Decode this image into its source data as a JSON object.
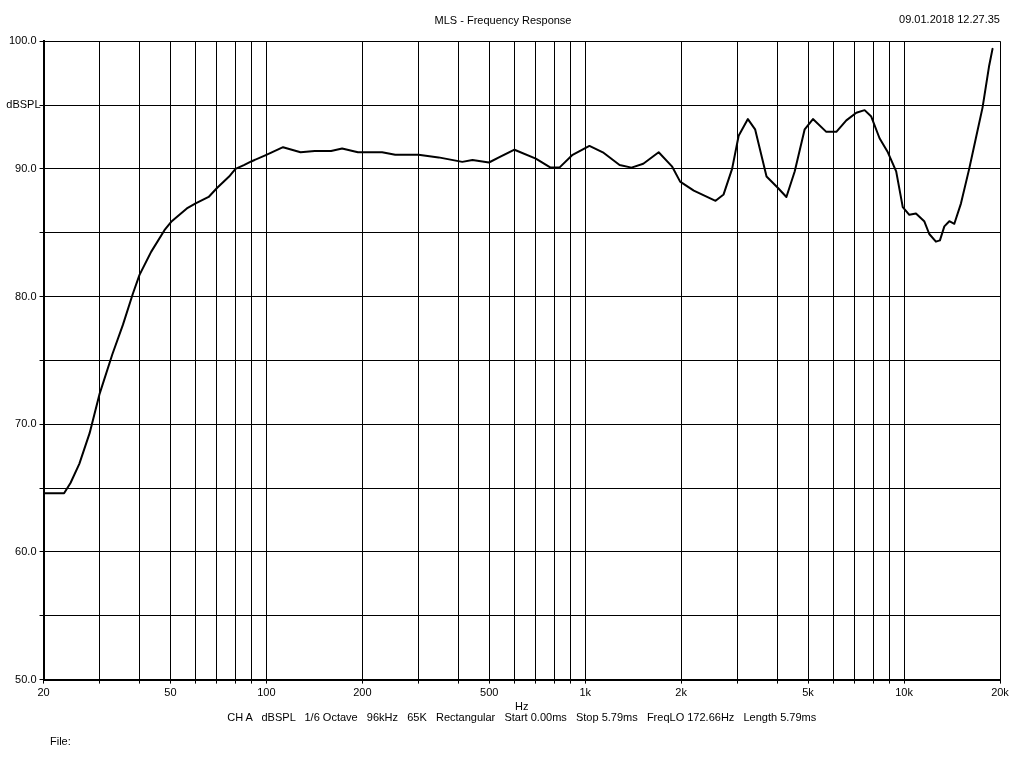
{
  "chart_data": {
    "type": "line",
    "title": "MLS - Frequency Response",
    "xlabel": "Hz",
    "ylabel": "dBSPL",
    "annotations": [
      "09.01.2018 12.27.35",
      "CH A   dBSPL   1/6 Octave   96kHz   65K   Rectangular   Start 0.00ms   Stop 5.79ms   FreqLO 172.66Hz   Length 5.79ms",
      "File:"
    ],
    "log": "x",
    "grid": true,
    "legend": false,
    "marker": "none",
    "line_style": "solid",
    "xlim": [
      20,
      20000
    ],
    "ylim": [
      50,
      100
    ],
    "xticks": [
      20,
      {
        "value": 30,
        "label": null
      },
      {
        "value": 40,
        "label": null
      },
      50,
      {
        "value": 60,
        "label": null
      },
      {
        "value": 70,
        "label": null
      },
      {
        "value": 80,
        "label": null
      },
      {
        "value": 90,
        "label": null
      },
      100,
      200,
      {
        "value": 300,
        "label": null
      },
      {
        "value": 400,
        "label": null
      },
      500,
      {
        "value": 600,
        "label": null
      },
      {
        "value": 700,
        "label": null
      },
      {
        "value": 800,
        "label": null
      },
      {
        "value": 900,
        "label": null
      },
      {
        "value": 1000,
        "label": "1k"
      },
      {
        "value": 2000,
        "label": "2k"
      },
      {
        "value": 3000,
        "label": null
      },
      {
        "value": 4000,
        "label": null
      },
      {
        "value": 5000,
        "label": "5k"
      },
      {
        "value": 6000,
        "label": null
      },
      {
        "value": 7000,
        "label": null
      },
      {
        "value": 8000,
        "label": null
      },
      {
        "value": 9000,
        "label": null
      },
      {
        "value": 10000,
        "label": "10k"
      },
      {
        "value": 20000,
        "label": "20k"
      }
    ],
    "yticks": [
      {
        "value": 50,
        "label": "50.0"
      },
      {
        "value": 55,
        "label": null
      },
      {
        "value": 60,
        "label": "60.0"
      },
      {
        "value": 65,
        "label": null
      },
      {
        "value": 70,
        "label": "70.0"
      },
      {
        "value": 75,
        "label": null
      },
      {
        "value": 80,
        "label": "80.0"
      },
      {
        "value": 85,
        "label": null
      },
      {
        "value": 90,
        "label": "90.0"
      },
      {
        "value": 95,
        "label": null
      },
      {
        "value": 100,
        "label": "100.0"
      }
    ],
    "series": [
      {
        "color": "#000000",
        "x": [
          20,
          23.2,
          24.3,
          25.9,
          27.9,
          30,
          32.9,
          35.5,
          38.1,
          40,
          43.5,
          47.9,
          50.5,
          56.3,
          60,
          65.9,
          70,
          76.4,
          80,
          85,
          90,
          100,
          112.8,
          128,
          141.8,
          159.6,
          172.8,
          193.7,
          230.7,
          253.6,
          300,
          346.9,
          411.6,
          443,
          499,
          536.4,
          600,
          700,
          779,
          830,
          913,
          1031,
          1136,
          1282,
          1397,
          1521,
          1700,
          1871,
          1985,
          2191,
          2564,
          2717,
          2889,
          3029,
          3238,
          3411,
          3705,
          4025,
          4276,
          4540,
          4880,
          5180,
          5705,
          6133,
          6592,
          7085,
          7523,
          7892,
          8380,
          8898,
          9449,
          9909,
          10390,
          10900,
          11570,
          12000,
          12590,
          12960,
          13380,
          13870,
          14380,
          15090,
          16010,
          16800,
          17630,
          18500,
          18950
        ],
        "values": [
          64.6,
          64.6,
          65.4,
          66.9,
          69.3,
          72.4,
          75.5,
          77.8,
          80.2,
          81.7,
          83.5,
          85.2,
          85.9,
          86.9,
          87.3,
          87.8,
          88.5,
          89.4,
          90.0,
          90.3,
          90.6,
          91.1,
          91.7,
          91.3,
          91.4,
          91.4,
          91.6,
          91.3,
          91.3,
          91.1,
          91.1,
          90.9,
          90.55,
          90.7,
          90.5,
          90.9,
          91.5,
          90.8,
          90.1,
          90.1,
          91.1,
          91.8,
          91.3,
          90.3,
          90.1,
          90.4,
          91.3,
          90.2,
          89.0,
          88.3,
          87.5,
          88.0,
          90.0,
          92.6,
          93.9,
          93.1,
          89.4,
          88.5,
          87.8,
          89.8,
          93.1,
          93.9,
          92.9,
          92.9,
          93.8,
          94.4,
          94.6,
          94.1,
          92.4,
          91.3,
          89.8,
          87.0,
          86.4,
          86.5,
          85.9,
          84.9,
          84.3,
          84.4,
          85.5,
          85.9,
          85.7,
          87.3,
          90.0,
          92.4,
          94.8,
          98.1,
          99.4
        ]
      }
    ]
  }
}
